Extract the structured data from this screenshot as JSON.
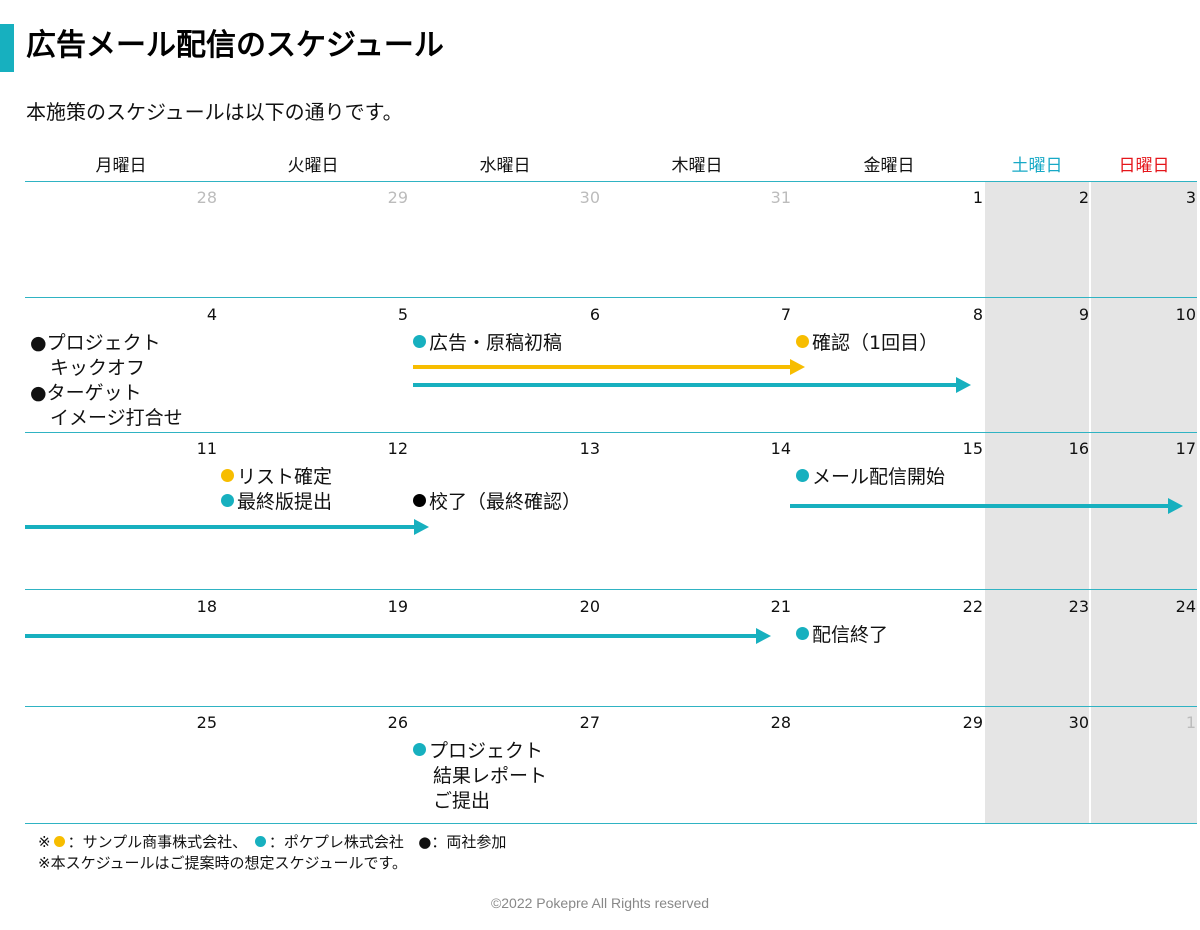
{
  "header": {
    "title": "広告メール配信のスケジュール",
    "subtitle": "本施策のスケジュールは以下の通りです。"
  },
  "colors": {
    "accent": "#17b0bf",
    "client": "#f7bd00",
    "pokepre": "#17b0bf",
    "both": "#000000",
    "saturday": "#17a9c6",
    "sunday": "#e5161b",
    "weekend_background": "#e5e5e5"
  },
  "calendar": {
    "weekdays": [
      "月曜日",
      "火曜日",
      "水曜日",
      "木曜日",
      "金曜日",
      "土曜日",
      "日曜日"
    ],
    "weeks": [
      [
        "28",
        "29",
        "30",
        "31",
        "1",
        "2",
        "3"
      ],
      [
        "4",
        "5",
        "6",
        "7",
        "8",
        "9",
        "10"
      ],
      [
        "11",
        "12",
        "13",
        "14",
        "15",
        "16",
        "17"
      ],
      [
        "18",
        "19",
        "20",
        "21",
        "22",
        "23",
        "24"
      ],
      [
        "25",
        "26",
        "27",
        "28",
        "29",
        "30",
        "1"
      ]
    ],
    "faded_days": [
      "28",
      "29",
      "30",
      "31",
      "1"
    ]
  },
  "events": {
    "kickoff": [
      "●プロジェクト",
      "キックオフ"
    ],
    "target_image": [
      "●ターゲット",
      "イメージ打合せ"
    ],
    "ad_draft": "広告・原稿初稿",
    "confirm_first": "確認（1回目）",
    "list_confirm": "リスト確定",
    "final_submit": "最終版提出",
    "proof_complete": "校了（最終確認）",
    "mail_start": "メール配信開始",
    "mail_end": "配信終了",
    "report": [
      "プロジェクト",
      "結果レポート",
      "ご提出"
    ]
  },
  "legend": {
    "line1_prefix": "※",
    "line1_client": "：サンプル商事株式会社、",
    "line1_pokepre": "：ポケプレ株式会社",
    "line1_both": "●：両社参加",
    "line2": "※本スケジュールはご提案時の想定スケジュールです。"
  },
  "footer": {
    "copyright": "©2022 Pokepre All Rights reserved"
  }
}
